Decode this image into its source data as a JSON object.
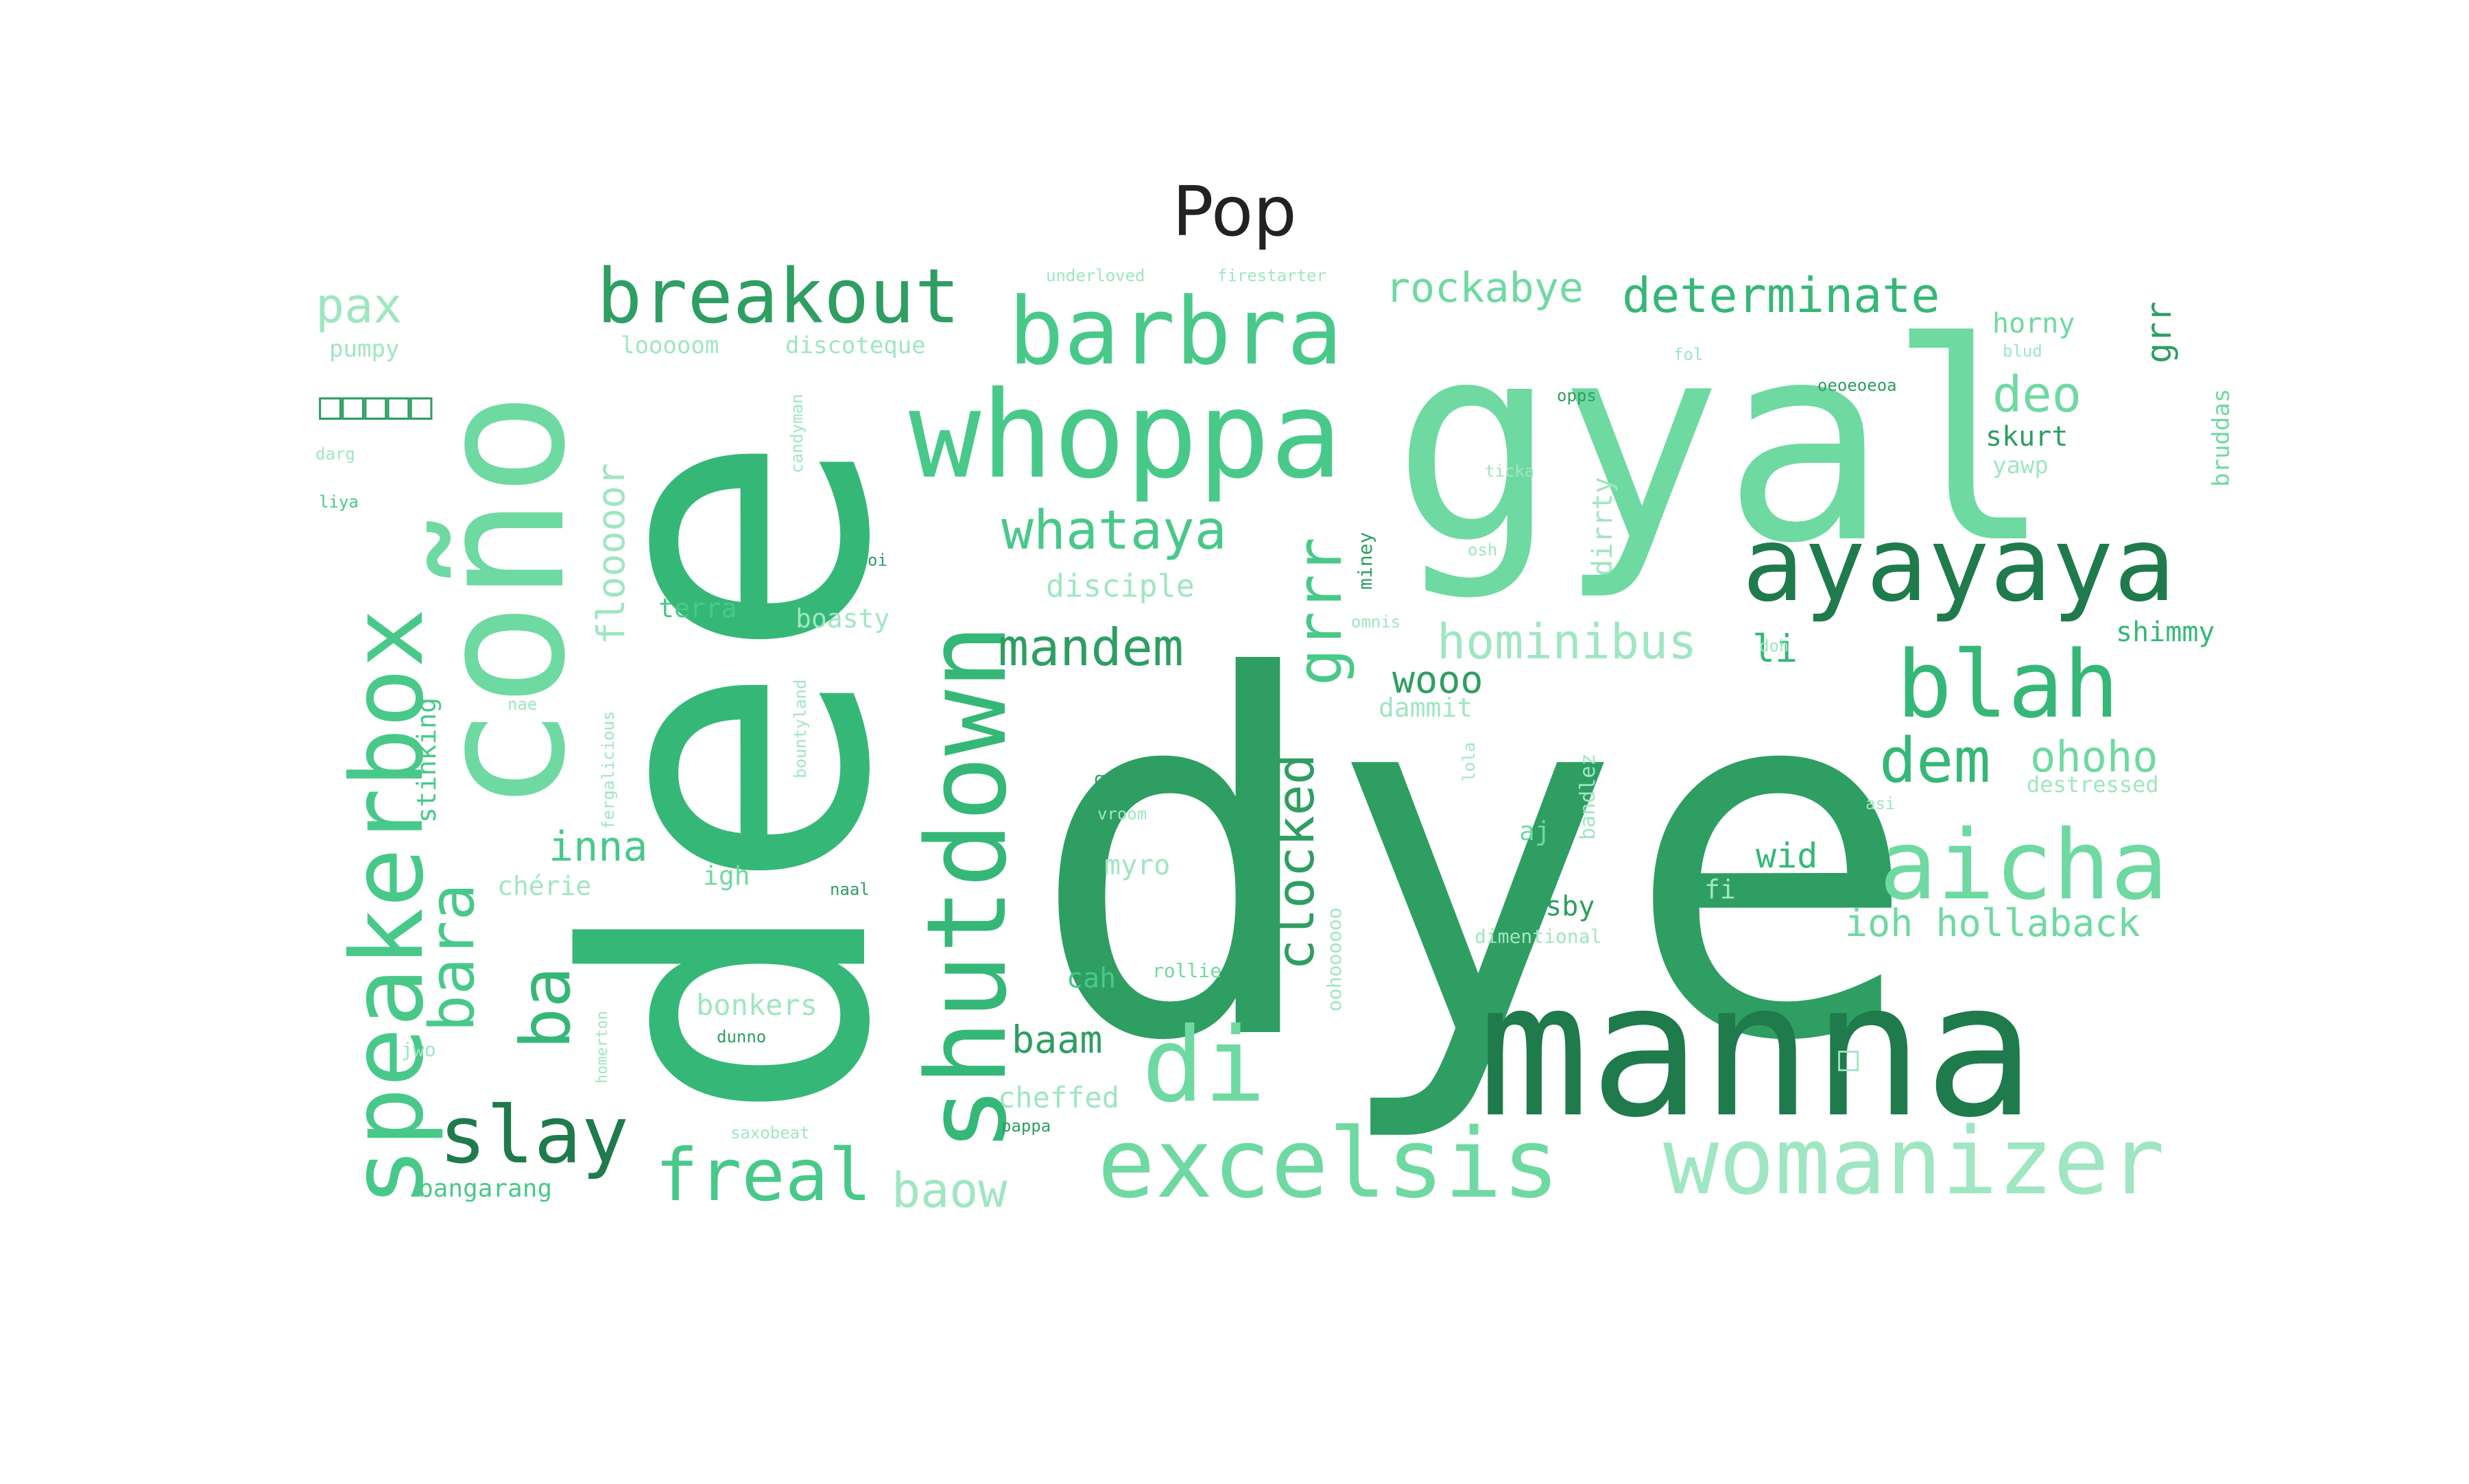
{
  "chart_data": {
    "type": "wordcloud",
    "title": "Pop",
    "color_scheme": [
      "#1f7a4c",
      "#2e9e62",
      "#35b877",
      "#48c98a",
      "#6fd9a2",
      "#9fe6c2"
    ],
    "words": [
      {
        "text": "dye",
        "weight": 100,
        "color": "#2e9e62",
        "rotate": false
      },
      {
        "text": "dee",
        "weight": 90,
        "color": "#35b877",
        "rotate": true
      },
      {
        "text": "gyal",
        "weight": 78,
        "color": "#6fd9a2",
        "rotate": false
      },
      {
        "text": "manna",
        "weight": 58,
        "color": "#1f7a4c",
        "rotate": false
      },
      {
        "text": "coño",
        "weight": 52,
        "color": "#6fd9a2",
        "rotate": true
      },
      {
        "text": "whoppa",
        "weight": 40,
        "color": "#48c98a",
        "rotate": false
      },
      {
        "text": "shutdown",
        "weight": 38,
        "color": "#35b877",
        "rotate": true
      },
      {
        "text": "ayayaya",
        "weight": 36,
        "color": "#1f7a4c",
        "rotate": false
      },
      {
        "text": "speakerbox",
        "weight": 34,
        "color": "#48c98a",
        "rotate": true
      },
      {
        "text": "aicha",
        "weight": 33,
        "color": "#6fd9a2",
        "rotate": false
      },
      {
        "text": "excelsis",
        "weight": 32,
        "color": "#6fd9a2",
        "rotate": false
      },
      {
        "text": "barbra",
        "weight": 31,
        "color": "#48c98a",
        "rotate": false
      },
      {
        "text": "womanizer",
        "weight": 31,
        "color": "#9fe6c2",
        "rotate": false
      },
      {
        "text": "di",
        "weight": 30,
        "color": "#6fd9a2",
        "rotate": false
      },
      {
        "text": "blah",
        "weight": 30,
        "color": "#35b877",
        "rotate": false
      },
      {
        "text": "breakout",
        "weight": 26,
        "color": "#2e9e62",
        "rotate": false
      },
      {
        "text": "slay",
        "weight": 25,
        "color": "#1f7a4c",
        "rotate": false
      },
      {
        "text": "freal",
        "weight": 24,
        "color": "#48c98a",
        "rotate": false
      },
      {
        "text": "ba",
        "weight": 23,
        "color": "#35b877",
        "rotate": true
      },
      {
        "text": "bara",
        "weight": 20,
        "color": "#48c98a",
        "rotate": true
      },
      {
        "text": "dem",
        "weight": 20,
        "color": "#35b877",
        "rotate": false
      },
      {
        "text": "clocked",
        "weight": 18,
        "color": "#2e9e62",
        "rotate": true
      },
      {
        "text": "grrr",
        "weight": 18,
        "color": "#48c98a",
        "rotate": true
      },
      {
        "text": "whataya",
        "weight": 17,
        "color": "#48c98a",
        "rotate": false
      },
      {
        "text": "mandem",
        "weight": 17,
        "color": "#2e9e62",
        "rotate": false
      },
      {
        "text": "hominibus",
        "weight": 16,
        "color": "#9fe6c2",
        "rotate": false
      },
      {
        "text": "determinate",
        "weight": 16,
        "color": "#35b877",
        "rotate": false
      },
      {
        "text": "deo",
        "weight": 16,
        "color": "#6fd9a2",
        "rotate": false
      },
      {
        "text": "pax",
        "weight": 15,
        "color": "#9fe6c2",
        "rotate": false
      },
      {
        "text": "ohoho",
        "weight": 14,
        "color": "#6fd9a2",
        "rotate": false
      },
      {
        "text": "rockabye",
        "weight": 14,
        "color": "#6fd9a2",
        "rotate": false
      },
      {
        "text": "ioh hollaback",
        "weight": 13,
        "color": "#6fd9a2",
        "rotate": false
      },
      {
        "text": "flooooor",
        "weight": 13,
        "color": "#9fe6c2",
        "rotate": true
      },
      {
        "text": "baow",
        "weight": 13,
        "color": "#9fe6c2",
        "rotate": false
      },
      {
        "text": "inna",
        "weight": 12,
        "color": "#48c98a",
        "rotate": false
      },
      {
        "text": "li",
        "weight": 12,
        "color": "#35b877",
        "rotate": false
      },
      {
        "text": "wooo",
        "weight": 12,
        "color": "#2e9e62",
        "rotate": false
      },
      {
        "text": "baam",
        "weight": 12,
        "color": "#2e9e62",
        "rotate": false
      },
      {
        "text": "grr",
        "weight": 11,
        "color": "#2e9e62",
        "rotate": true
      },
      {
        "text": "disciple",
        "weight": 10,
        "color": "#9fe6c2",
        "rotate": false
      },
      {
        "text": "wid",
        "weight": 10,
        "color": "#35b877",
        "rotate": false
      },
      {
        "text": "cheffed",
        "weight": 10,
        "color": "#9fe6c2",
        "rotate": false
      },
      {
        "text": "bonkers",
        "weight": 10,
        "color": "#9fe6c2",
        "rotate": false
      },
      {
        "text": "myro",
        "weight": 9,
        "color": "#9fe6c2",
        "rotate": false
      },
      {
        "text": "stinking",
        "weight": 9,
        "color": "#48c98a",
        "rotate": true
      },
      {
        "text": "dirrty",
        "weight": 9,
        "color": "#9fe6c2",
        "rotate": true
      },
      {
        "text": "horny",
        "weight": 9,
        "color": "#6fd9a2",
        "rotate": false
      },
      {
        "text": "skurt",
        "weight": 9,
        "color": "#2e9e62",
        "rotate": false
      },
      {
        "text": "shimmy",
        "weight": 9,
        "color": "#35b877",
        "rotate": false
      },
      {
        "text": "dammit",
        "weight": 9,
        "color": "#9fe6c2",
        "rotate": false
      },
      {
        "text": "terra",
        "weight": 9,
        "color": "#48c98a",
        "rotate": false
      },
      {
        "text": "boasty",
        "weight": 9,
        "color": "#9fe6c2",
        "rotate": false
      },
      {
        "text": "chérie",
        "weight": 9,
        "color": "#9fe6c2",
        "rotate": false
      },
      {
        "text": "igh",
        "weight": 9,
        "color": "#6fd9a2",
        "rotate": false
      },
      {
        "text": "cosby",
        "weight": 9,
        "color": "#2e9e62",
        "rotate": false
      },
      {
        "text": "cah",
        "weight": 9,
        "color": "#48c98a",
        "rotate": false
      },
      {
        "text": "bangarang",
        "weight": 9,
        "color": "#48c98a",
        "rotate": false
      },
      {
        "text": "aj",
        "weight": 9,
        "color": "#6fd9a2",
        "rotate": false
      },
      {
        "text": "fi",
        "weight": 9,
        "color": "#9fe6c2",
        "rotate": false
      },
      {
        "text": "bruddas",
        "weight": 8,
        "color": "#6fd9a2",
        "rotate": true
      },
      {
        "text": "yawp",
        "weight": 8,
        "color": "#9fe6c2",
        "rotate": false
      },
      {
        "text": "looooom",
        "weight": 8,
        "color": "#9fe6c2",
        "rotate": false
      },
      {
        "text": "discoteque",
        "weight": 8,
        "color": "#9fe6c2",
        "rotate": false
      },
      {
        "text": "pumpy",
        "weight": 8,
        "color": "#9fe6c2",
        "rotate": false
      },
      {
        "text": "bandlez",
        "weight": 8,
        "color": "#9fe6c2",
        "rotate": true
      },
      {
        "text": "destressed",
        "weight": 8,
        "color": "#9fe6c2",
        "rotate": false
      },
      {
        "text": "dimentional",
        "weight": 7,
        "color": "#9fe6c2",
        "rotate": false
      },
      {
        "text": "g6",
        "weight": 7,
        "color": "#2e9e62",
        "rotate": false
      },
      {
        "text": "rollie",
        "weight": 7,
        "color": "#6fd9a2",
        "rotate": false
      },
      {
        "text": "jwo",
        "weight": 7,
        "color": "#9fe6c2",
        "rotate": false
      },
      {
        "text": "candyman",
        "weight": 7,
        "color": "#9fe6c2",
        "rotate": true
      },
      {
        "text": "bountyland",
        "weight": 7,
        "color": "#9fe6c2",
        "rotate": true
      },
      {
        "text": "fergalicious",
        "weight": 7,
        "color": "#9fe6c2",
        "rotate": true
      },
      {
        "text": "miney",
        "weight": 7,
        "color": "#2e9e62",
        "rotate": true
      },
      {
        "text": "oohoooooo",
        "weight": 7,
        "color": "#9fe6c2",
        "rotate": true
      },
      {
        "text": "underloved",
        "weight": 6,
        "color": "#9fe6c2",
        "rotate": false
      },
      {
        "text": "firestarter",
        "weight": 6,
        "color": "#9fe6c2",
        "rotate": false
      },
      {
        "text": "vroom",
        "weight": 6,
        "color": "#9fe6c2",
        "rotate": false
      },
      {
        "text": "darg",
        "weight": 6,
        "color": "#9fe6c2",
        "rotate": false
      },
      {
        "text": "liya",
        "weight": 6,
        "color": "#48c98a",
        "rotate": false
      },
      {
        "text": "blud",
        "weight": 6,
        "color": "#9fe6c2",
        "rotate": false
      },
      {
        "text": "fol",
        "weight": 6,
        "color": "#9fe6c2",
        "rotate": false
      },
      {
        "text": "ticka",
        "weight": 6,
        "color": "#9fe6c2",
        "rotate": false
      },
      {
        "text": "osh",
        "weight": 6,
        "color": "#9fe6c2",
        "rotate": false
      },
      {
        "text": "omnis",
        "weight": 6,
        "color": "#9fe6c2",
        "rotate": false
      },
      {
        "text": "doh",
        "weight": 6,
        "color": "#9fe6c2",
        "rotate": false
      },
      {
        "text": "asi",
        "weight": 6,
        "color": "#9fe6c2",
        "rotate": false
      },
      {
        "text": "lola",
        "weight": 6,
        "color": "#9fe6c2",
        "rotate": true
      },
      {
        "text": "homerton",
        "weight": 6,
        "color": "#9fe6c2",
        "rotate": true
      },
      {
        "text": "opps",
        "weight": 6,
        "color": "#2e9e62",
        "rotate": false
      },
      {
        "text": "oeoeoeoa",
        "weight": 6,
        "color": "#2e9e62",
        "rotate": false
      },
      {
        "text": "naal",
        "weight": 6,
        "color": "#2e9e62",
        "rotate": false
      },
      {
        "text": "dunno",
        "weight": 6,
        "color": "#2e9e62",
        "rotate": false
      },
      {
        "text": "saxobeat",
        "weight": 6,
        "color": "#9fe6c2",
        "rotate": false
      },
      {
        "text": "pappa",
        "weight": 6,
        "color": "#2e9e62",
        "rotate": false
      },
      {
        "text": "oi",
        "weight": 6,
        "color": "#2e9e62",
        "rotate": false
      },
      {
        "text": "nae",
        "weight": 6,
        "color": "#9fe6c2",
        "rotate": false
      },
      {
        "text": "□□□□□",
        "weight": 11,
        "color": "#2e9e62",
        "rotate": false
      },
      {
        "text": "□",
        "weight": 9,
        "color": "#9fe6c2",
        "rotate": false
      }
    ]
  }
}
